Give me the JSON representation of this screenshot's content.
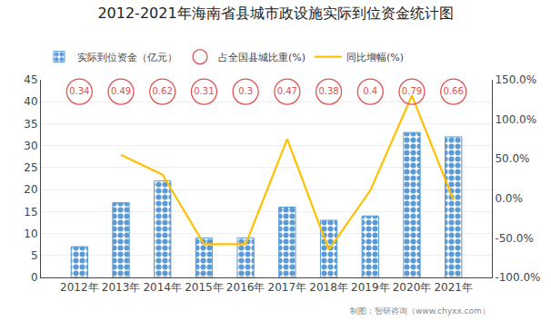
{
  "chart_data": {
    "type": "bar",
    "title": "2012-2021年海南省县城市政设施实际到位资金统计图",
    "categories": [
      "2012年",
      "2013年",
      "2014年",
      "2015年",
      "2016年",
      "2017年",
      "2018年",
      "2019年",
      "2020年",
      "2021年"
    ],
    "series": [
      {
        "name": "实际到位资金（亿元）",
        "type": "bar",
        "color": "#5b9bd5",
        "marker": "dot",
        "values": [
          7.0,
          17.0,
          22.0,
          9.0,
          9.0,
          16.0,
          13.0,
          14.0,
          33.0,
          32.0
        ]
      },
      {
        "name": "占全国县城比重(%)",
        "type": "scatter",
        "color": "#e05050",
        "marker": "circle",
        "data_labels": true,
        "values": [
          0.34,
          0.49,
          0.62,
          0.31,
          0.3,
          0.47,
          0.38,
          0.4,
          0.79,
          0.66
        ]
      },
      {
        "name": "同比增幅(%)",
        "type": "line",
        "color": "#ffc000",
        "axis": "y2",
        "values": [
          null,
          55.0,
          30.0,
          -58.0,
          -58.0,
          75.0,
          -65.0,
          10.0,
          130.0,
          -2.0
        ]
      }
    ],
    "ylim": [
      0,
      45
    ],
    "yticks": [
      0,
      5,
      10,
      15,
      20,
      25,
      30,
      35,
      40,
      45
    ],
    "y2lim": [
      -100,
      150
    ],
    "y2ticks": [
      {
        "value": -100,
        "label": "-100.0%"
      },
      {
        "value": -50,
        "label": "-50.0%"
      },
      {
        "value": 0,
        "label": "0.0%"
      },
      {
        "value": 50,
        "label": "50.0%"
      },
      {
        "value": 100,
        "label": "100.0%"
      },
      {
        "value": 150,
        "label": "150.0%"
      }
    ],
    "grid": true,
    "legend": "upper left",
    "annotations": [
      "制图：智研咨询（www.chyxx.com）"
    ]
  }
}
